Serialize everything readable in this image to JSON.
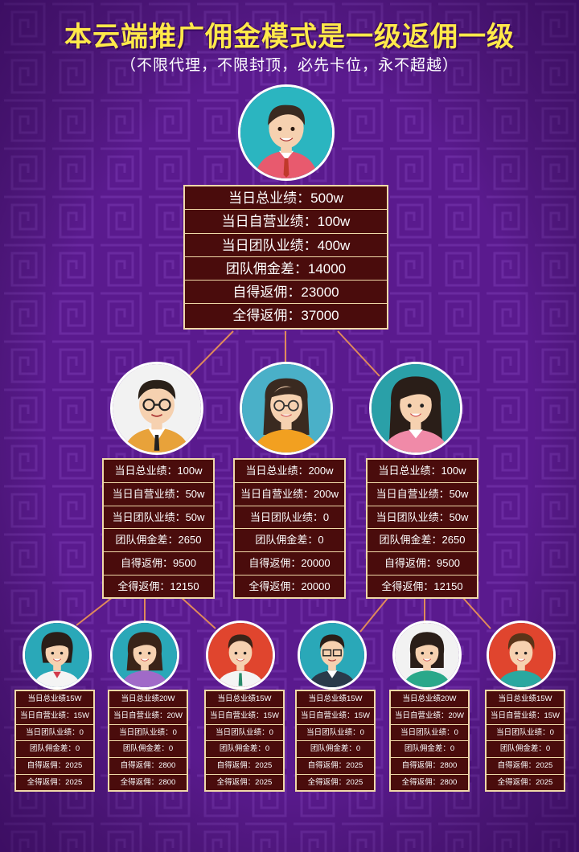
{
  "header": {
    "title": "本云端推广佣金模式是一级返佣一级",
    "subtitle": "（不限代理，不限封顶，必先卡位，永不超越）"
  },
  "colors": {
    "background": "#5a1a8e",
    "title": "#ffe94a",
    "box_fill": "#4a0c0c",
    "box_border": "#f0d9a8",
    "connector": "#e08a5a"
  },
  "top": {
    "avatar": "man-with-red-tie-avatar",
    "rows": [
      "当日总业绩：500w",
      "当日自营业绩：100w",
      "当日团队业绩：400w",
      "团队佣金差：14000",
      "自得返佣：23000",
      "全得返佣：37000"
    ]
  },
  "middle": [
    {
      "avatar": "man-with-glasses-avatar",
      "rows": [
        "当日总业绩：100w",
        "当日自营业绩：50w",
        "当日团队业绩：50w",
        "团队佣金差：2650",
        "自得返佣：9500",
        "全得返佣：12150"
      ]
    },
    {
      "avatar": "woman-with-glasses-avatar",
      "rows": [
        "当日总业绩：200w",
        "当日自营业绩：200w",
        "当日团队业绩：0",
        "团队佣金差：0",
        "自得返佣：20000",
        "全得返佣：20000"
      ]
    },
    {
      "avatar": "woman-long-hair-avatar",
      "rows": [
        "当日总业绩：100w",
        "当日自营业绩：50w",
        "当日团队业绩：50w",
        "团队佣金差：2650",
        "自得返佣：9500",
        "全得返佣：12150"
      ]
    }
  ],
  "bottom": [
    {
      "avatar": "woman-short-hair-avatar",
      "rows": [
        "当日总业绩15W",
        "当日自营业绩：15W",
        "当日团队业绩：0",
        "团队佣金差：0",
        "自得返佣：2025",
        "全得返佣：2025"
      ]
    },
    {
      "avatar": "woman-purple-avatar",
      "rows": [
        "当日总业绩20W",
        "当日自营业绩：20W",
        "当日团队业绩：0",
        "团队佣金差：0",
        "自得返佣：2800",
        "全得返佣：2800"
      ]
    },
    {
      "avatar": "man-red-background-avatar",
      "rows": [
        "当日总业绩15W",
        "当日自营业绩：15W",
        "当日团队业绩：0",
        "团队佣金差：0",
        "自得返佣：2025",
        "全得返佣：2025"
      ]
    },
    {
      "avatar": "man-glasses-teal-avatar",
      "rows": [
        "当日总业绩15W",
        "当日自营业绩：15W",
        "当日团队业绩：0",
        "团队佣金差：0",
        "自得返佣：2025",
        "全得返佣：2025"
      ]
    },
    {
      "avatar": "woman-green-avatar",
      "rows": [
        "当日总业绩20W",
        "当日自营业绩：20W",
        "当日团队业绩：0",
        "团队佣金差：0",
        "自得返佣：2800",
        "全得返佣：2800"
      ]
    },
    {
      "avatar": "boy-red-background-avatar",
      "rows": [
        "当日总业绩15W",
        "当日自营业绩：15W",
        "当日团队业绩：0",
        "团队佣金差：0",
        "自得返佣：2025",
        "全得返佣：2025"
      ]
    }
  ]
}
